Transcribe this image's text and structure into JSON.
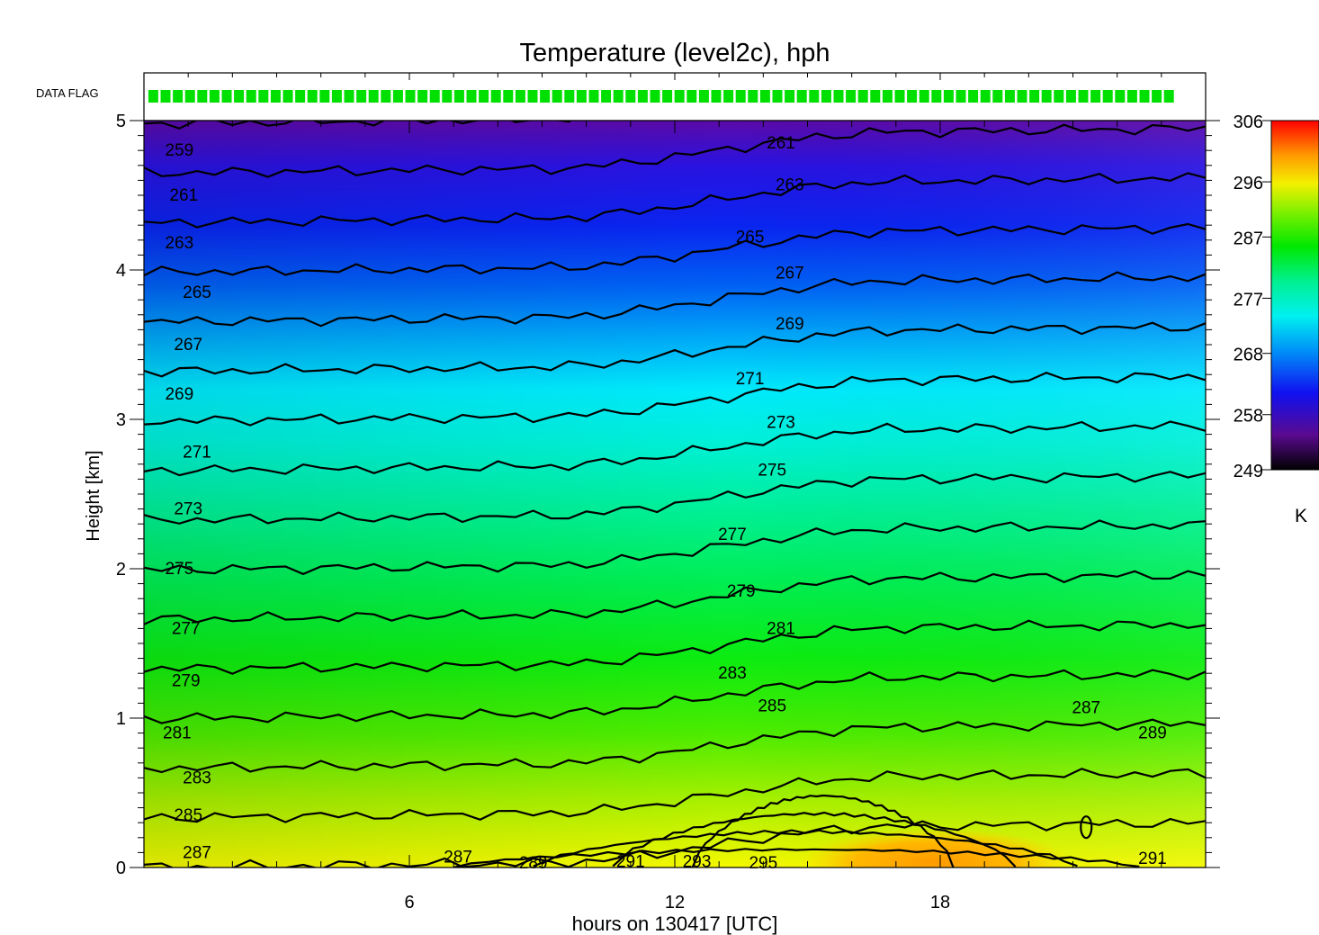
{
  "chart_data": {
    "type": "heatmap",
    "title": "Temperature (level2c), hph",
    "xlabel": "hours on 130417 [UTC]",
    "ylabel": "Height [km]",
    "xlim": [
      0,
      24
    ],
    "ylim": [
      0,
      5
    ],
    "x_ticks": [
      6,
      12,
      18
    ],
    "y_ticks": [
      0,
      1,
      2,
      3,
      4,
      5
    ],
    "colorbar": {
      "unit": "K",
      "ticks": [
        249,
        258,
        268,
        277,
        287,
        296,
        306
      ],
      "range": [
        249,
        306
      ]
    },
    "data_flag": {
      "label": "DATA FLAG",
      "color": "#00e000",
      "segments": [
        [
          0.1,
          23.5
        ],
        [
          23.85,
          24
        ]
      ]
    },
    "contour_interval": 2,
    "contour_labels": [
      {
        "value": "259",
        "x": 0.8,
        "y": 4.8
      },
      {
        "value": "261",
        "x": 0.9,
        "y": 4.5
      },
      {
        "value": "263",
        "x": 0.8,
        "y": 4.18
      },
      {
        "value": "265",
        "x": 1.2,
        "y": 3.85
      },
      {
        "value": "267",
        "x": 1.0,
        "y": 3.5
      },
      {
        "value": "269",
        "x": 0.8,
        "y": 3.17
      },
      {
        "value": "271",
        "x": 1.2,
        "y": 2.78
      },
      {
        "value": "273",
        "x": 1.0,
        "y": 2.4
      },
      {
        "value": "275",
        "x": 0.8,
        "y": 2.0
      },
      {
        "value": "277",
        "x": 0.95,
        "y": 1.6
      },
      {
        "value": "279",
        "x": 0.95,
        "y": 1.25
      },
      {
        "value": "281",
        "x": 0.75,
        "y": 0.9
      },
      {
        "value": "283",
        "x": 1.2,
        "y": 0.6
      },
      {
        "value": "285",
        "x": 1.0,
        "y": 0.35
      },
      {
        "value": "287",
        "x": 1.2,
        "y": 0.1
      },
      {
        "value": "261",
        "x": 14.4,
        "y": 4.85
      },
      {
        "value": "263",
        "x": 14.6,
        "y": 4.57
      },
      {
        "value": "265",
        "x": 13.7,
        "y": 4.22
      },
      {
        "value": "267",
        "x": 14.6,
        "y": 3.98
      },
      {
        "value": "269",
        "x": 14.6,
        "y": 3.64
      },
      {
        "value": "271",
        "x": 13.7,
        "y": 3.27
      },
      {
        "value": "273",
        "x": 14.4,
        "y": 2.98
      },
      {
        "value": "275",
        "x": 14.2,
        "y": 2.66
      },
      {
        "value": "277",
        "x": 13.3,
        "y": 2.23
      },
      {
        "value": "279",
        "x": 13.5,
        "y": 1.85
      },
      {
        "value": "281",
        "x": 14.4,
        "y": 1.6
      },
      {
        "value": "283",
        "x": 13.3,
        "y": 1.3
      },
      {
        "value": "285",
        "x": 14.2,
        "y": 1.08
      },
      {
        "value": "287",
        "x": 7.1,
        "y": 0.07
      },
      {
        "value": "289",
        "x": 8.8,
        "y": 0.03
      },
      {
        "value": "291",
        "x": 11.0,
        "y": 0.04
      },
      {
        "value": "293",
        "x": 12.5,
        "y": 0.04
      },
      {
        "value": "295",
        "x": 14.0,
        "y": 0.03
      },
      {
        "value": "287",
        "x": 21.3,
        "y": 1.07
      },
      {
        "value": "289",
        "x": 22.8,
        "y": 0.9
      },
      {
        "value": "291",
        "x": 22.8,
        "y": 0.06
      }
    ]
  }
}
